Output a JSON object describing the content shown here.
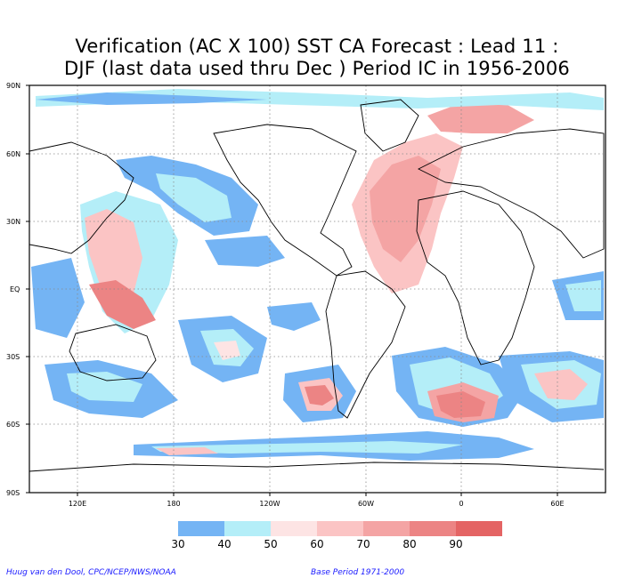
{
  "title": {
    "line1": "Verification (AC X 100) SST CA Forecast : Lead 11 :",
    "line2": "DJF (last data used thru Dec ) Period IC in 1956-2006"
  },
  "axes": {
    "lat_labels": [
      "90N",
      "60N",
      "30N",
      "EQ",
      "30S",
      "60S",
      "90S"
    ],
    "lon_labels": [
      "120E",
      "180",
      "120W",
      "60W",
      "0",
      "60E"
    ]
  },
  "legend": {
    "bins": [
      {
        "label": "30",
        "color": "#74b4f4"
      },
      {
        "label": "40",
        "color": "#b4eef8"
      },
      {
        "label": "50",
        "color": "#fde4e4"
      },
      {
        "label": "60",
        "color": "#fbc4c4"
      },
      {
        "label": "70",
        "color": "#f4a4a4"
      },
      {
        "label": "80",
        "color": "#ec8484"
      },
      {
        "label": "90",
        "color": "#e46464"
      }
    ]
  },
  "credits": {
    "left": "Huug van den Dool, CPC/NCEP/NWS/NOAA",
    "right": "Base Period 1971-2000"
  }
}
